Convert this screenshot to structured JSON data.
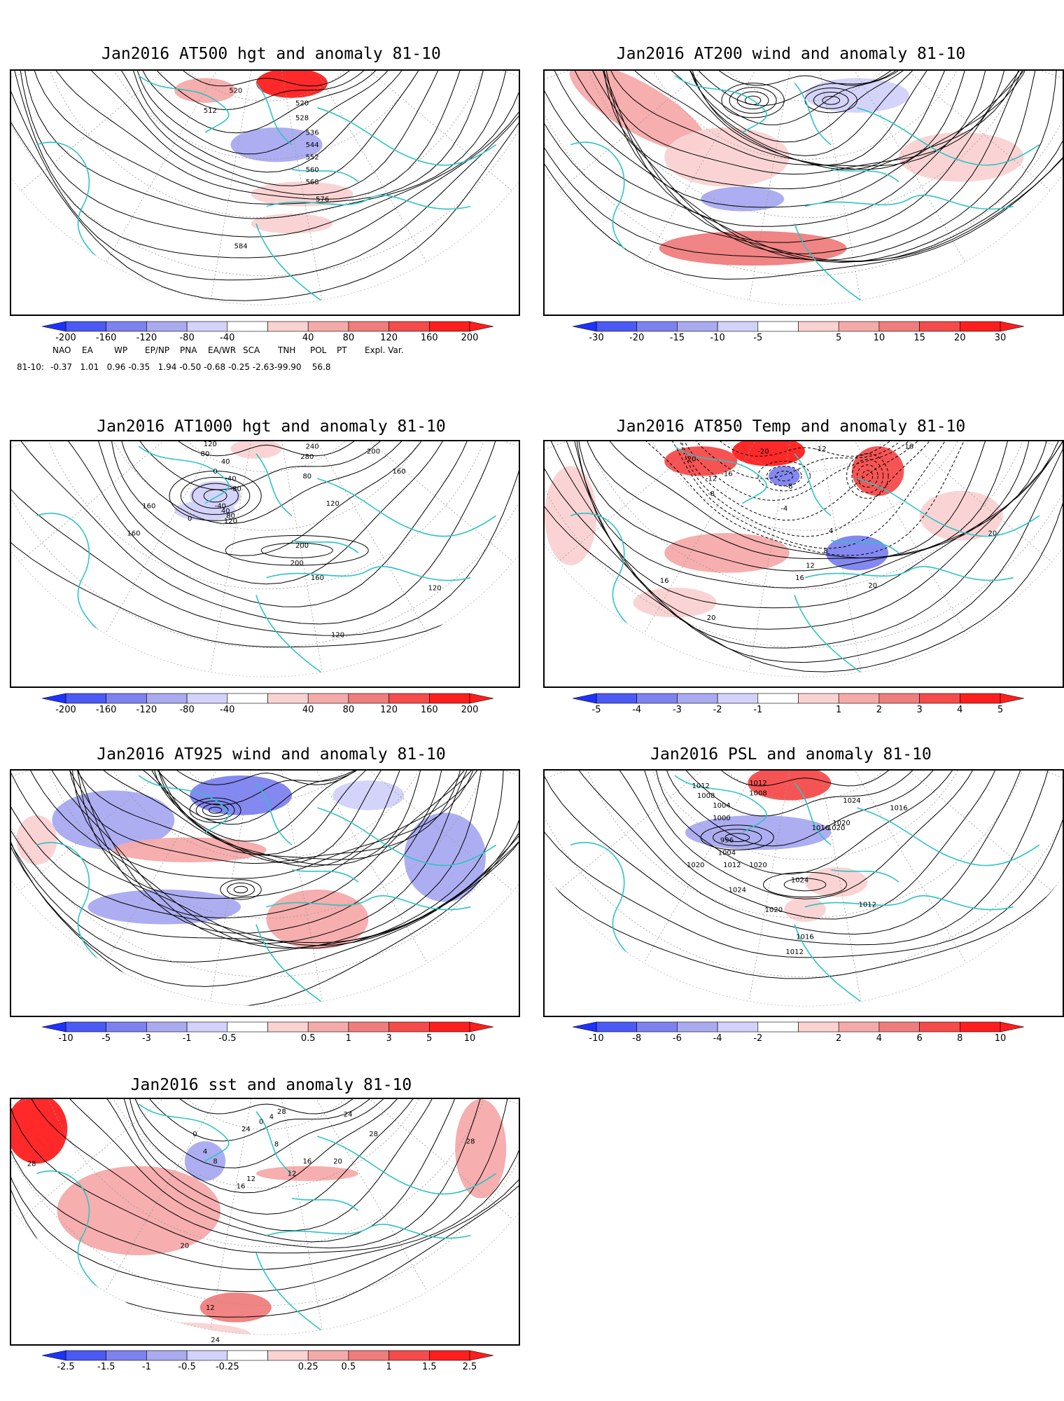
{
  "colors": {
    "blue_scale": [
      "#1e32ff",
      "#4b5af5",
      "#7d82f0",
      "#a9aaf0",
      "#d2d2fa"
    ],
    "red_scale": [
      "#fad2d2",
      "#f5aaaa",
      "#f07d7d",
      "#f54b4b",
      "#ff1e1e"
    ],
    "coast": "#2ec4c4",
    "contour": "#000000"
  },
  "panels": [
    {
      "id": "p1",
      "title": "Jan2016 AT500 hgt and anomaly 81-10",
      "map_type": "height-contours",
      "colorbar": [
        "-200",
        "-160",
        "-120",
        "-80",
        "-40",
        "40",
        "80",
        "120",
        "160",
        "200"
      ],
      "contour_labels": [
        "512",
        "520",
        "520",
        "528",
        "536",
        "544",
        "552",
        "560",
        "568",
        "576",
        "584"
      ],
      "indices": {
        "label": "81-10:",
        "names": [
          "NAO",
          "EA",
          "WP",
          "EP/NP",
          "PNA",
          "EA/WR",
          "SCA",
          "TNH",
          "POL",
          "PT",
          "Expl. Var."
        ],
        "values": "-0.37   1.01   0.96 -0.35   1.94 -0.50 -0.68 -0.25 -2.63-99.90    56.8"
      }
    },
    {
      "id": "p2",
      "title": "Jan2016 AT200 wind and anomaly 81-10",
      "map_type": "streamlines",
      "colorbar": [
        "-30",
        "-20",
        "-15",
        "-10",
        "-5",
        "5",
        "10",
        "15",
        "20",
        "30"
      ],
      "contour_labels": []
    },
    {
      "id": "p3",
      "title": "Jan2016 AT1000 hgt and anomaly 81-10",
      "map_type": "height-contours",
      "colorbar": [
        "-200",
        "-160",
        "-120",
        "-80",
        "-40",
        "40",
        "80",
        "120",
        "160",
        "200"
      ],
      "contour_labels": [
        "120",
        "80",
        "40",
        "0",
        "-40",
        "-80",
        "-40",
        "0",
        "40",
        "80",
        "120",
        "160",
        "160",
        "200",
        "200",
        "160",
        "120",
        "120",
        "240",
        "280",
        "200",
        "160",
        "120",
        "80"
      ]
    },
    {
      "id": "p4",
      "title": "Jan2016 AT850 Temp and anomaly 81-10",
      "map_type": "temperature-contours",
      "colorbar": [
        "-5",
        "-4",
        "-3",
        "-2",
        "-1",
        "1",
        "2",
        "3",
        "4",
        "5"
      ],
      "contour_labels": [
        "-20",
        "-20",
        "-16",
        "-12",
        "-12",
        "-8",
        "-8",
        "-4",
        "4",
        "8",
        "12",
        "16",
        "16",
        "20",
        "20",
        "20",
        "16"
      ]
    },
    {
      "id": "p5",
      "title": "Jan2016 AT925 wind and anomaly 81-10",
      "map_type": "streamlines",
      "colorbar": [
        "-10",
        "-5",
        "-3",
        "-1",
        "-0.5",
        "0.5",
        "1",
        "3",
        "5",
        "10"
      ],
      "contour_labels": []
    },
    {
      "id": "p6",
      "title": "Jan2016 PSL and anomaly 81-10",
      "map_type": "pressure-contours",
      "colorbar": [
        "-10",
        "-8",
        "-6",
        "-4",
        "-2",
        "2",
        "4",
        "6",
        "8",
        "10"
      ],
      "contour_labels": [
        "1012",
        "1008",
        "1004",
        "1012",
        "1008",
        "1000",
        "996",
        "1004",
        "1012",
        "1024",
        "1020",
        "1016",
        "1020",
        "1016",
        "1020",
        "1020",
        "1024",
        "1024",
        "1012",
        "1020",
        "1016",
        "1012"
      ]
    },
    {
      "id": "p7",
      "title": "Jan2016 sst and anomaly 81-10",
      "map_type": "sst-contours",
      "colorbar": [
        "-2.5",
        "-1.5",
        "-1",
        "-0.5",
        "-0.25",
        "0.25",
        "0.5",
        "1",
        "1.5",
        "2.5"
      ],
      "contour_labels": [
        "28",
        "28",
        "24",
        "20",
        "16",
        "12",
        "8",
        "4",
        "0",
        "0",
        "4",
        "8",
        "12",
        "16",
        "20",
        "24",
        "28",
        "24",
        "28",
        "12"
      ]
    }
  ]
}
